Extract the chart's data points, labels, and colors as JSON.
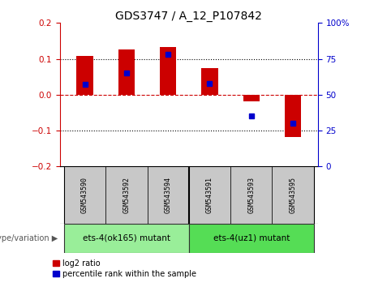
{
  "title": "GDS3747 / A_12_P107842",
  "samples": [
    "GSM543590",
    "GSM543592",
    "GSM543594",
    "GSM543591",
    "GSM543593",
    "GSM543595"
  ],
  "log2_ratio": [
    0.108,
    0.127,
    0.133,
    0.075,
    -0.018,
    -0.118
  ],
  "percentile_rank": [
    57,
    65,
    78,
    58,
    35,
    30
  ],
  "group1_count": 3,
  "group2_count": 3,
  "group1_label": "ets-4(ok165) mutant",
  "group2_label": "ets-4(uz1) mutant",
  "group_row_label": "genotype/variation",
  "ylim_left": [
    -0.2,
    0.2
  ],
  "ylim_right": [
    0,
    100
  ],
  "yticks_left": [
    -0.2,
    -0.1,
    0.0,
    0.1,
    0.2
  ],
  "yticks_right": [
    0,
    25,
    50,
    75,
    100
  ],
  "bar_color": "#cc0000",
  "dot_color": "#0000cc",
  "zero_line_color": "#cc0000",
  "grid_color": "#000000",
  "bg_color": "#ffffff",
  "sample_box_color": "#c8c8c8",
  "group1_color": "#99ee99",
  "group2_color": "#55dd55",
  "legend_log2_label": "log2 ratio",
  "legend_pct_label": "percentile rank within the sample",
  "bar_width": 0.4
}
